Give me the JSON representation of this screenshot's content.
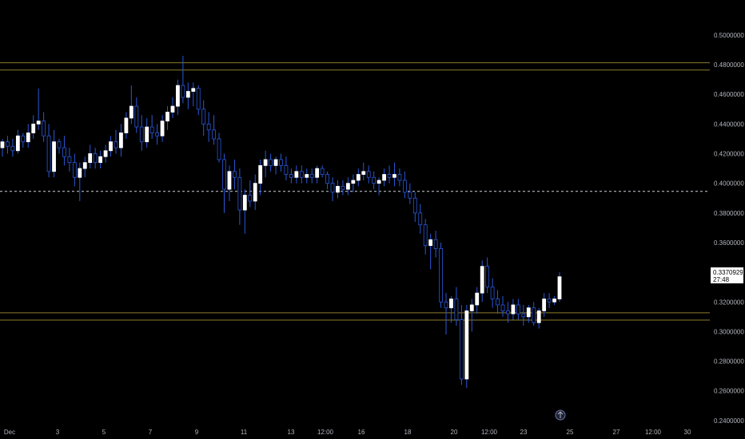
{
  "colors": {
    "background": "#000000",
    "axis_text": "#b2b5be",
    "up_candle": "#ffffff",
    "down_candle": "#2a57d8",
    "wick": "#2a57d8",
    "level_line": "#8a7a2a",
    "dashed_line": "#d1d4dc"
  },
  "chart_data": {
    "type": "candlestick",
    "y_axis_labels": [
      "0.5000000",
      "0.4800000",
      "0.4600000",
      "0.4400000",
      "0.4200000",
      "0.4000000",
      "0.3800000",
      "0.3600000",
      "0.3400000",
      "0.3200000",
      "0.3000000",
      "0.2800000",
      "0.2600000",
      "0.2400000"
    ],
    "y_axis_values": [
      0.5,
      0.48,
      0.46,
      0.44,
      0.42,
      0.4,
      0.38,
      0.36,
      0.34,
      0.32,
      0.3,
      0.28,
      0.26,
      0.24
    ],
    "ylim": [
      0.2394,
      0.5118
    ],
    "x_axis_labels": [
      "Dec",
      "3",
      "5",
      "7",
      "9",
      "11",
      "13",
      "12:00",
      "16",
      "18",
      "20",
      "12:00",
      "23",
      "25",
      "27",
      "12:00",
      "30"
    ],
    "horizontal_levels": [
      0.4813,
      0.4764,
      0.3127,
      0.3078
    ],
    "dashed_level": 0.3946,
    "current_price": "0.3370929",
    "countdown": "27:48",
    "candles": [
      [
        0.424,
        0.43,
        0.418,
        0.428
      ],
      [
        0.428,
        0.432,
        0.42,
        0.425
      ],
      [
        0.425,
        0.43,
        0.418,
        0.422
      ],
      [
        0.422,
        0.436,
        0.42,
        0.432
      ],
      [
        0.432,
        0.434,
        0.424,
        0.428
      ],
      [
        0.428,
        0.44,
        0.424,
        0.434
      ],
      [
        0.434,
        0.446,
        0.43,
        0.44
      ],
      [
        0.44,
        0.464,
        0.436,
        0.442
      ],
      [
        0.442,
        0.448,
        0.428,
        0.432
      ],
      [
        0.432,
        0.44,
        0.404,
        0.408
      ],
      [
        0.408,
        0.436,
        0.404,
        0.428
      ],
      [
        0.428,
        0.43,
        0.42,
        0.424
      ],
      [
        0.424,
        0.432,
        0.412,
        0.418
      ],
      [
        0.418,
        0.424,
        0.408,
        0.414
      ],
      [
        0.414,
        0.42,
        0.398,
        0.404
      ],
      [
        0.404,
        0.414,
        0.388,
        0.41
      ],
      [
        0.41,
        0.418,
        0.404,
        0.414
      ],
      [
        0.414,
        0.426,
        0.41,
        0.42
      ],
      [
        0.42,
        0.424,
        0.41,
        0.414
      ],
      [
        0.414,
        0.422,
        0.41,
        0.418
      ],
      [
        0.418,
        0.426,
        0.414,
        0.422
      ],
      [
        0.422,
        0.432,
        0.418,
        0.428
      ],
      [
        0.428,
        0.436,
        0.42,
        0.424
      ],
      [
        0.424,
        0.44,
        0.418,
        0.434
      ],
      [
        0.434,
        0.448,
        0.43,
        0.444
      ],
      [
        0.444,
        0.466,
        0.44,
        0.452
      ],
      [
        0.452,
        0.458,
        0.434,
        0.438
      ],
      [
        0.438,
        0.446,
        0.422,
        0.428
      ],
      [
        0.428,
        0.444,
        0.424,
        0.438
      ],
      [
        0.438,
        0.446,
        0.43,
        0.434
      ],
      [
        0.434,
        0.44,
        0.426,
        0.432
      ],
      [
        0.432,
        0.446,
        0.428,
        0.442
      ],
      [
        0.442,
        0.452,
        0.436,
        0.448
      ],
      [
        0.448,
        0.458,
        0.444,
        0.452
      ],
      [
        0.452,
        0.47,
        0.446,
        0.466
      ],
      [
        0.466,
        0.486,
        0.454,
        0.458
      ],
      [
        0.458,
        0.468,
        0.45,
        0.462
      ],
      [
        0.462,
        0.468,
        0.452,
        0.464
      ],
      [
        0.464,
        0.466,
        0.446,
        0.45
      ],
      [
        0.45,
        0.456,
        0.432,
        0.44
      ],
      [
        0.44,
        0.448,
        0.428,
        0.436
      ],
      [
        0.436,
        0.446,
        0.426,
        0.43
      ],
      [
        0.43,
        0.434,
        0.414,
        0.416
      ],
      [
        0.416,
        0.42,
        0.38,
        0.396
      ],
      [
        0.396,
        0.412,
        0.388,
        0.408
      ],
      [
        0.408,
        0.416,
        0.396,
        0.404
      ],
      [
        0.404,
        0.41,
        0.372,
        0.382
      ],
      [
        0.382,
        0.396,
        0.366,
        0.392
      ],
      [
        0.392,
        0.402,
        0.384,
        0.388
      ],
      [
        0.388,
        0.406,
        0.382,
        0.4
      ],
      [
        0.4,
        0.416,
        0.392,
        0.412
      ],
      [
        0.412,
        0.422,
        0.404,
        0.416
      ],
      [
        0.416,
        0.42,
        0.408,
        0.412
      ],
      [
        0.412,
        0.418,
        0.406,
        0.416
      ],
      [
        0.416,
        0.42,
        0.408,
        0.412
      ],
      [
        0.412,
        0.418,
        0.402,
        0.406
      ],
      [
        0.406,
        0.41,
        0.4,
        0.404
      ],
      [
        0.404,
        0.412,
        0.4,
        0.408
      ],
      [
        0.408,
        0.412,
        0.4,
        0.404
      ],
      [
        0.404,
        0.41,
        0.4,
        0.406
      ],
      [
        0.406,
        0.41,
        0.4,
        0.404
      ],
      [
        0.404,
        0.412,
        0.4,
        0.41
      ],
      [
        0.41,
        0.412,
        0.404,
        0.406
      ],
      [
        0.406,
        0.408,
        0.396,
        0.4
      ],
      [
        0.4,
        0.404,
        0.388,
        0.394
      ],
      [
        0.394,
        0.402,
        0.39,
        0.398
      ],
      [
        0.398,
        0.402,
        0.392,
        0.396
      ],
      [
        0.396,
        0.404,
        0.392,
        0.4
      ],
      [
        0.4,
        0.406,
        0.394,
        0.402
      ],
      [
        0.402,
        0.41,
        0.398,
        0.406
      ],
      [
        0.406,
        0.414,
        0.402,
        0.408
      ],
      [
        0.408,
        0.412,
        0.4,
        0.404
      ],
      [
        0.404,
        0.408,
        0.396,
        0.4
      ],
      [
        0.4,
        0.404,
        0.392,
        0.402
      ],
      [
        0.402,
        0.41,
        0.398,
        0.406
      ],
      [
        0.406,
        0.412,
        0.4,
        0.404
      ],
      [
        0.404,
        0.414,
        0.398,
        0.406
      ],
      [
        0.406,
        0.41,
        0.398,
        0.402
      ],
      [
        0.402,
        0.408,
        0.39,
        0.394
      ],
      [
        0.394,
        0.4,
        0.386,
        0.39
      ],
      [
        0.39,
        0.394,
        0.374,
        0.38
      ],
      [
        0.38,
        0.386,
        0.366,
        0.372
      ],
      [
        0.372,
        0.376,
        0.352,
        0.358
      ],
      [
        0.358,
        0.366,
        0.342,
        0.362
      ],
      [
        0.362,
        0.368,
        0.35,
        0.356
      ],
      [
        0.356,
        0.36,
        0.316,
        0.32
      ],
      [
        0.32,
        0.326,
        0.298,
        0.316
      ],
      [
        0.316,
        0.324,
        0.306,
        0.322
      ],
      [
        0.322,
        0.33,
        0.304,
        0.308
      ],
      [
        0.308,
        0.318,
        0.264,
        0.268
      ],
      [
        0.268,
        0.318,
        0.262,
        0.314
      ],
      [
        0.314,
        0.322,
        0.3,
        0.318
      ],
      [
        0.318,
        0.33,
        0.312,
        0.326
      ],
      [
        0.326,
        0.348,
        0.32,
        0.344
      ],
      [
        0.344,
        0.35,
        0.326,
        0.33
      ],
      [
        0.33,
        0.336,
        0.316,
        0.322
      ],
      [
        0.322,
        0.328,
        0.312,
        0.318
      ],
      [
        0.318,
        0.324,
        0.31,
        0.314
      ],
      [
        0.314,
        0.32,
        0.306,
        0.312
      ],
      [
        0.312,
        0.322,
        0.308,
        0.318
      ],
      [
        0.318,
        0.322,
        0.308,
        0.312
      ],
      [
        0.312,
        0.318,
        0.304,
        0.31
      ],
      [
        0.31,
        0.318,
        0.306,
        0.316
      ],
      [
        0.316,
        0.32,
        0.304,
        0.306
      ],
      [
        0.306,
        0.316,
        0.302,
        0.314
      ],
      [
        0.314,
        0.326,
        0.31,
        0.322
      ],
      [
        0.322,
        0.326,
        0.316,
        0.32
      ],
      [
        0.32,
        0.324,
        0.318,
        0.322
      ],
      [
        0.322,
        0.34,
        0.32,
        0.337
      ]
    ]
  }
}
